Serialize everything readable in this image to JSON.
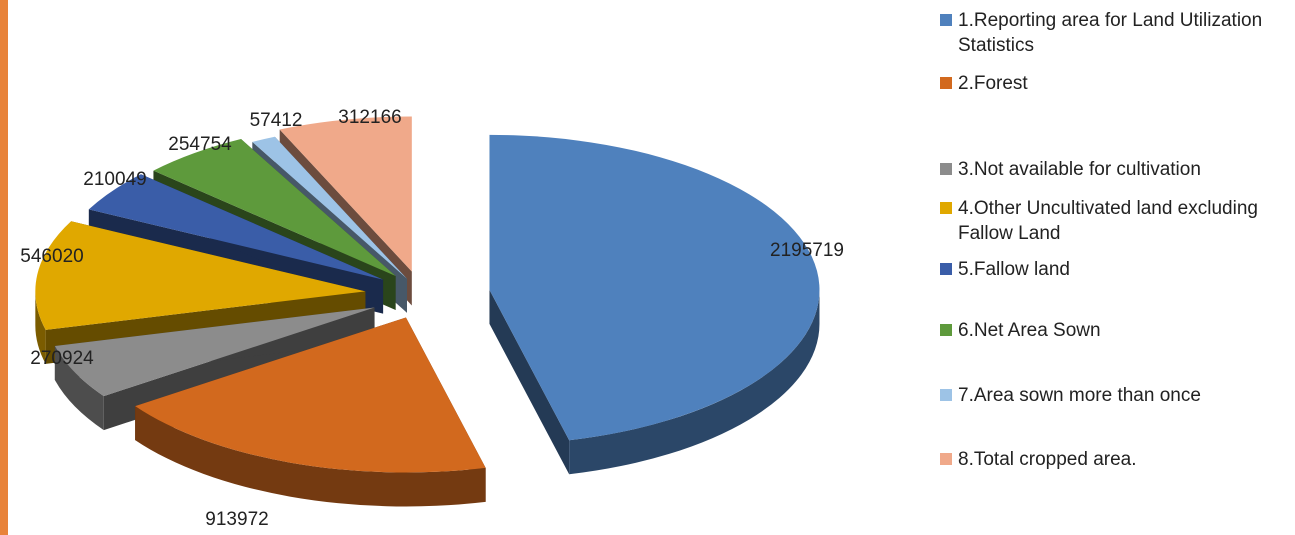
{
  "chart_data": {
    "type": "pie",
    "style": "3d-exploded",
    "title": "",
    "legend_position": "right",
    "series": [
      {
        "label": "1.Reporting area for Land Utilization Statistics",
        "value": 2195719,
        "color": "#4F81BD",
        "data_label": "2195719"
      },
      {
        "label": "2.Forest",
        "value": 913972,
        "color": "#D2691E",
        "data_label": "913972"
      },
      {
        "label": "3.Not available for cultivation",
        "value": 270924,
        "color": "#8C8C8C",
        "data_label": "270924"
      },
      {
        "label": "4.Other Uncultivated land excluding Fallow Land",
        "value": 546020,
        "color": "#E0A800",
        "data_label": "546020"
      },
      {
        "label": "5.Fallow land",
        "value": 210049,
        "color": "#3A5DA8",
        "data_label": "210049"
      },
      {
        "label": "6.Net Area Sown",
        "value": 254754,
        "color": "#5E9A3C",
        "data_label": "254754"
      },
      {
        "label": "7.Area sown more than once",
        "value": 57412,
        "color": "#9DC3E6",
        "data_label": "57412"
      },
      {
        "label": "8.Total cropped area.",
        "value": 312166,
        "color": "#F0A98A",
        "data_label": "312166"
      }
    ]
  },
  "accent_color": "#E8833A"
}
